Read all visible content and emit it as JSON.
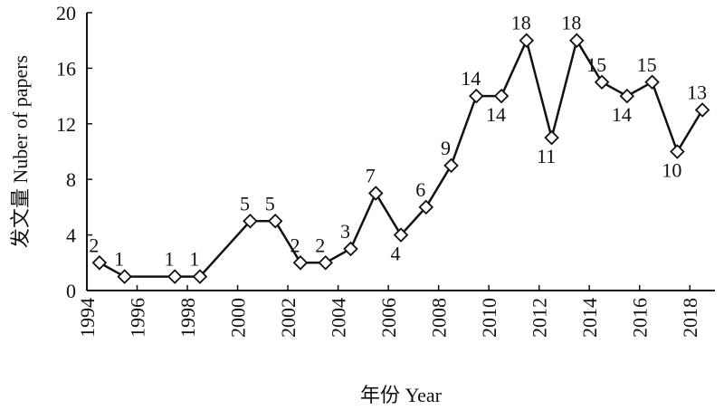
{
  "chart_data": {
    "type": "line",
    "xlabel": "年份  Year",
    "ylabel": "发文量  Nuber of papers",
    "xlim": [
      1994,
      2019
    ],
    "ylim": [
      0,
      20
    ],
    "x_ticks": [
      1994,
      1996,
      1998,
      2000,
      2002,
      2004,
      2006,
      2008,
      2010,
      2012,
      2014,
      2016,
      2018
    ],
    "y_ticks": [
      0,
      4,
      8,
      12,
      16,
      20
    ],
    "grid": false,
    "series": [
      {
        "x": [
          1994.5,
          1995.5,
          1997.5,
          1998.5,
          2000.5,
          2001.5,
          2002.5,
          2003.5,
          2004.5,
          2005.5,
          2006.5,
          2007.5,
          2008.5,
          2009.5,
          2010.5,
          2011.5,
          2012.5,
          2013.5,
          2014.5,
          2015.5,
          2016.5,
          2017.5,
          2018.5
        ],
        "values": [
          2,
          1,
          1,
          1,
          5,
          5,
          2,
          2,
          3,
          7,
          4,
          6,
          9,
          14,
          14,
          18,
          11,
          18,
          15,
          14,
          15,
          10,
          13
        ],
        "data_labels": [
          "2",
          "1",
          "1",
          "1",
          "5",
          "5",
          "2",
          "2",
          "3",
          "7",
          "4",
          "6",
          "9",
          "14",
          "14",
          "18",
          "11",
          "18",
          "15",
          "14",
          "15",
          "10",
          "13"
        ]
      }
    ]
  }
}
